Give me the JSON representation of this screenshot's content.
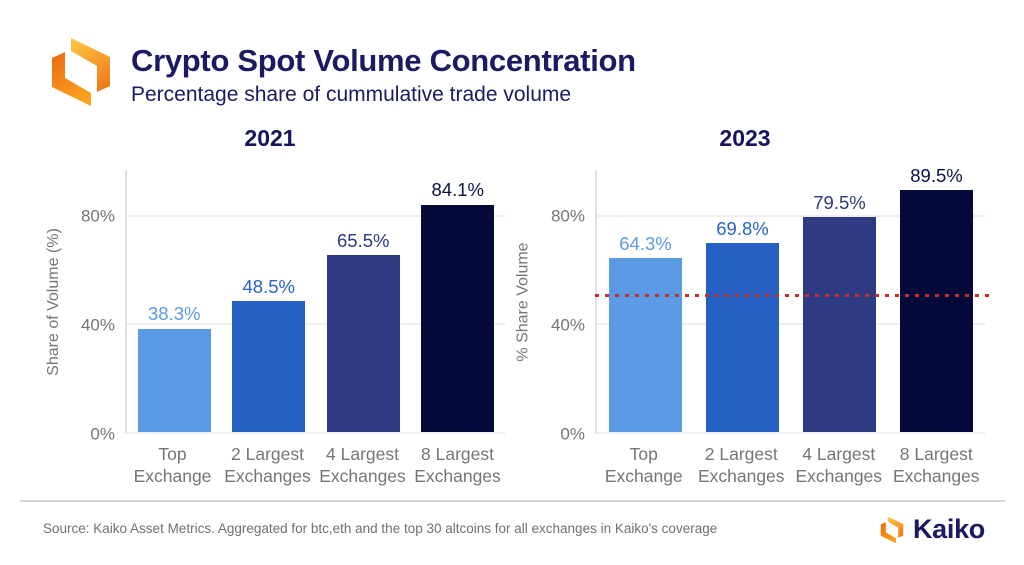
{
  "header": {
    "title": "Crypto Spot Volume Concentration",
    "subtitle": "Percentage share of cummulative trade volume",
    "logo": "kaiko-hexagon-logo"
  },
  "colors": {
    "title_navy": "#1b1a63",
    "chart_title_navy": "#15145c",
    "axis_gray": "#757575",
    "gridline": "#f2ecec",
    "reference_red": "#c5302a",
    "bar_palette": [
      "#5b9ae4",
      "#2760c3",
      "#2e3a81",
      "#050a3a"
    ],
    "label_palette": [
      "#5b9ae4",
      "#2763c9",
      "#2e3a81",
      "#0d1047"
    ],
    "logo_orange_light": "#ffc944",
    "logo_orange_deep": "#ee7517"
  },
  "chart_data": [
    {
      "type": "bar",
      "title": "2021",
      "ylabel": "Share of Volume (%)",
      "categories": [
        "Top Exchange",
        "2 Largest Exchanges",
        "4 Largest Exchanges",
        "8 Largest Exchanges"
      ],
      "values": [
        38.3,
        48.5,
        65.5,
        84.1
      ],
      "value_labels": [
        "38.3%",
        "48.5%",
        "65.5%",
        "84.1%"
      ],
      "yticks": [
        {
          "label": "0%",
          "value": 0
        },
        {
          "label": "40%",
          "value": 40
        },
        {
          "label": "80%",
          "value": 80
        }
      ],
      "ylim": [
        0,
        97
      ],
      "grid": "horizontal",
      "legend": "none"
    },
    {
      "type": "bar",
      "title": "2023",
      "ylabel": "% Share Volume",
      "categories": [
        "Top Exchange",
        "2 Largest Exchanges",
        "4 Largest Exchanges",
        "8 Largest Exchanges"
      ],
      "values": [
        64.3,
        69.8,
        79.5,
        89.5
      ],
      "value_labels": [
        "64.3%",
        "69.8%",
        "79.5%",
        "89.5%"
      ],
      "yticks": [
        {
          "label": "0%",
          "value": 0
        },
        {
          "label": "40%",
          "value": 40
        },
        {
          "label": "80%",
          "value": 80
        }
      ],
      "ylim": [
        0,
        97
      ],
      "grid": "horizontal",
      "legend": "none",
      "reference_line": {
        "value": 50,
        "style": "dotted",
        "color": "#c5302a"
      }
    }
  ],
  "footer": {
    "source": "Source: Kaiko Asset Metrics. Aggregated for btc,eth and the top 30 altcoins for all exchanges in Kaiko's coverage",
    "brand": "Kaiko"
  }
}
